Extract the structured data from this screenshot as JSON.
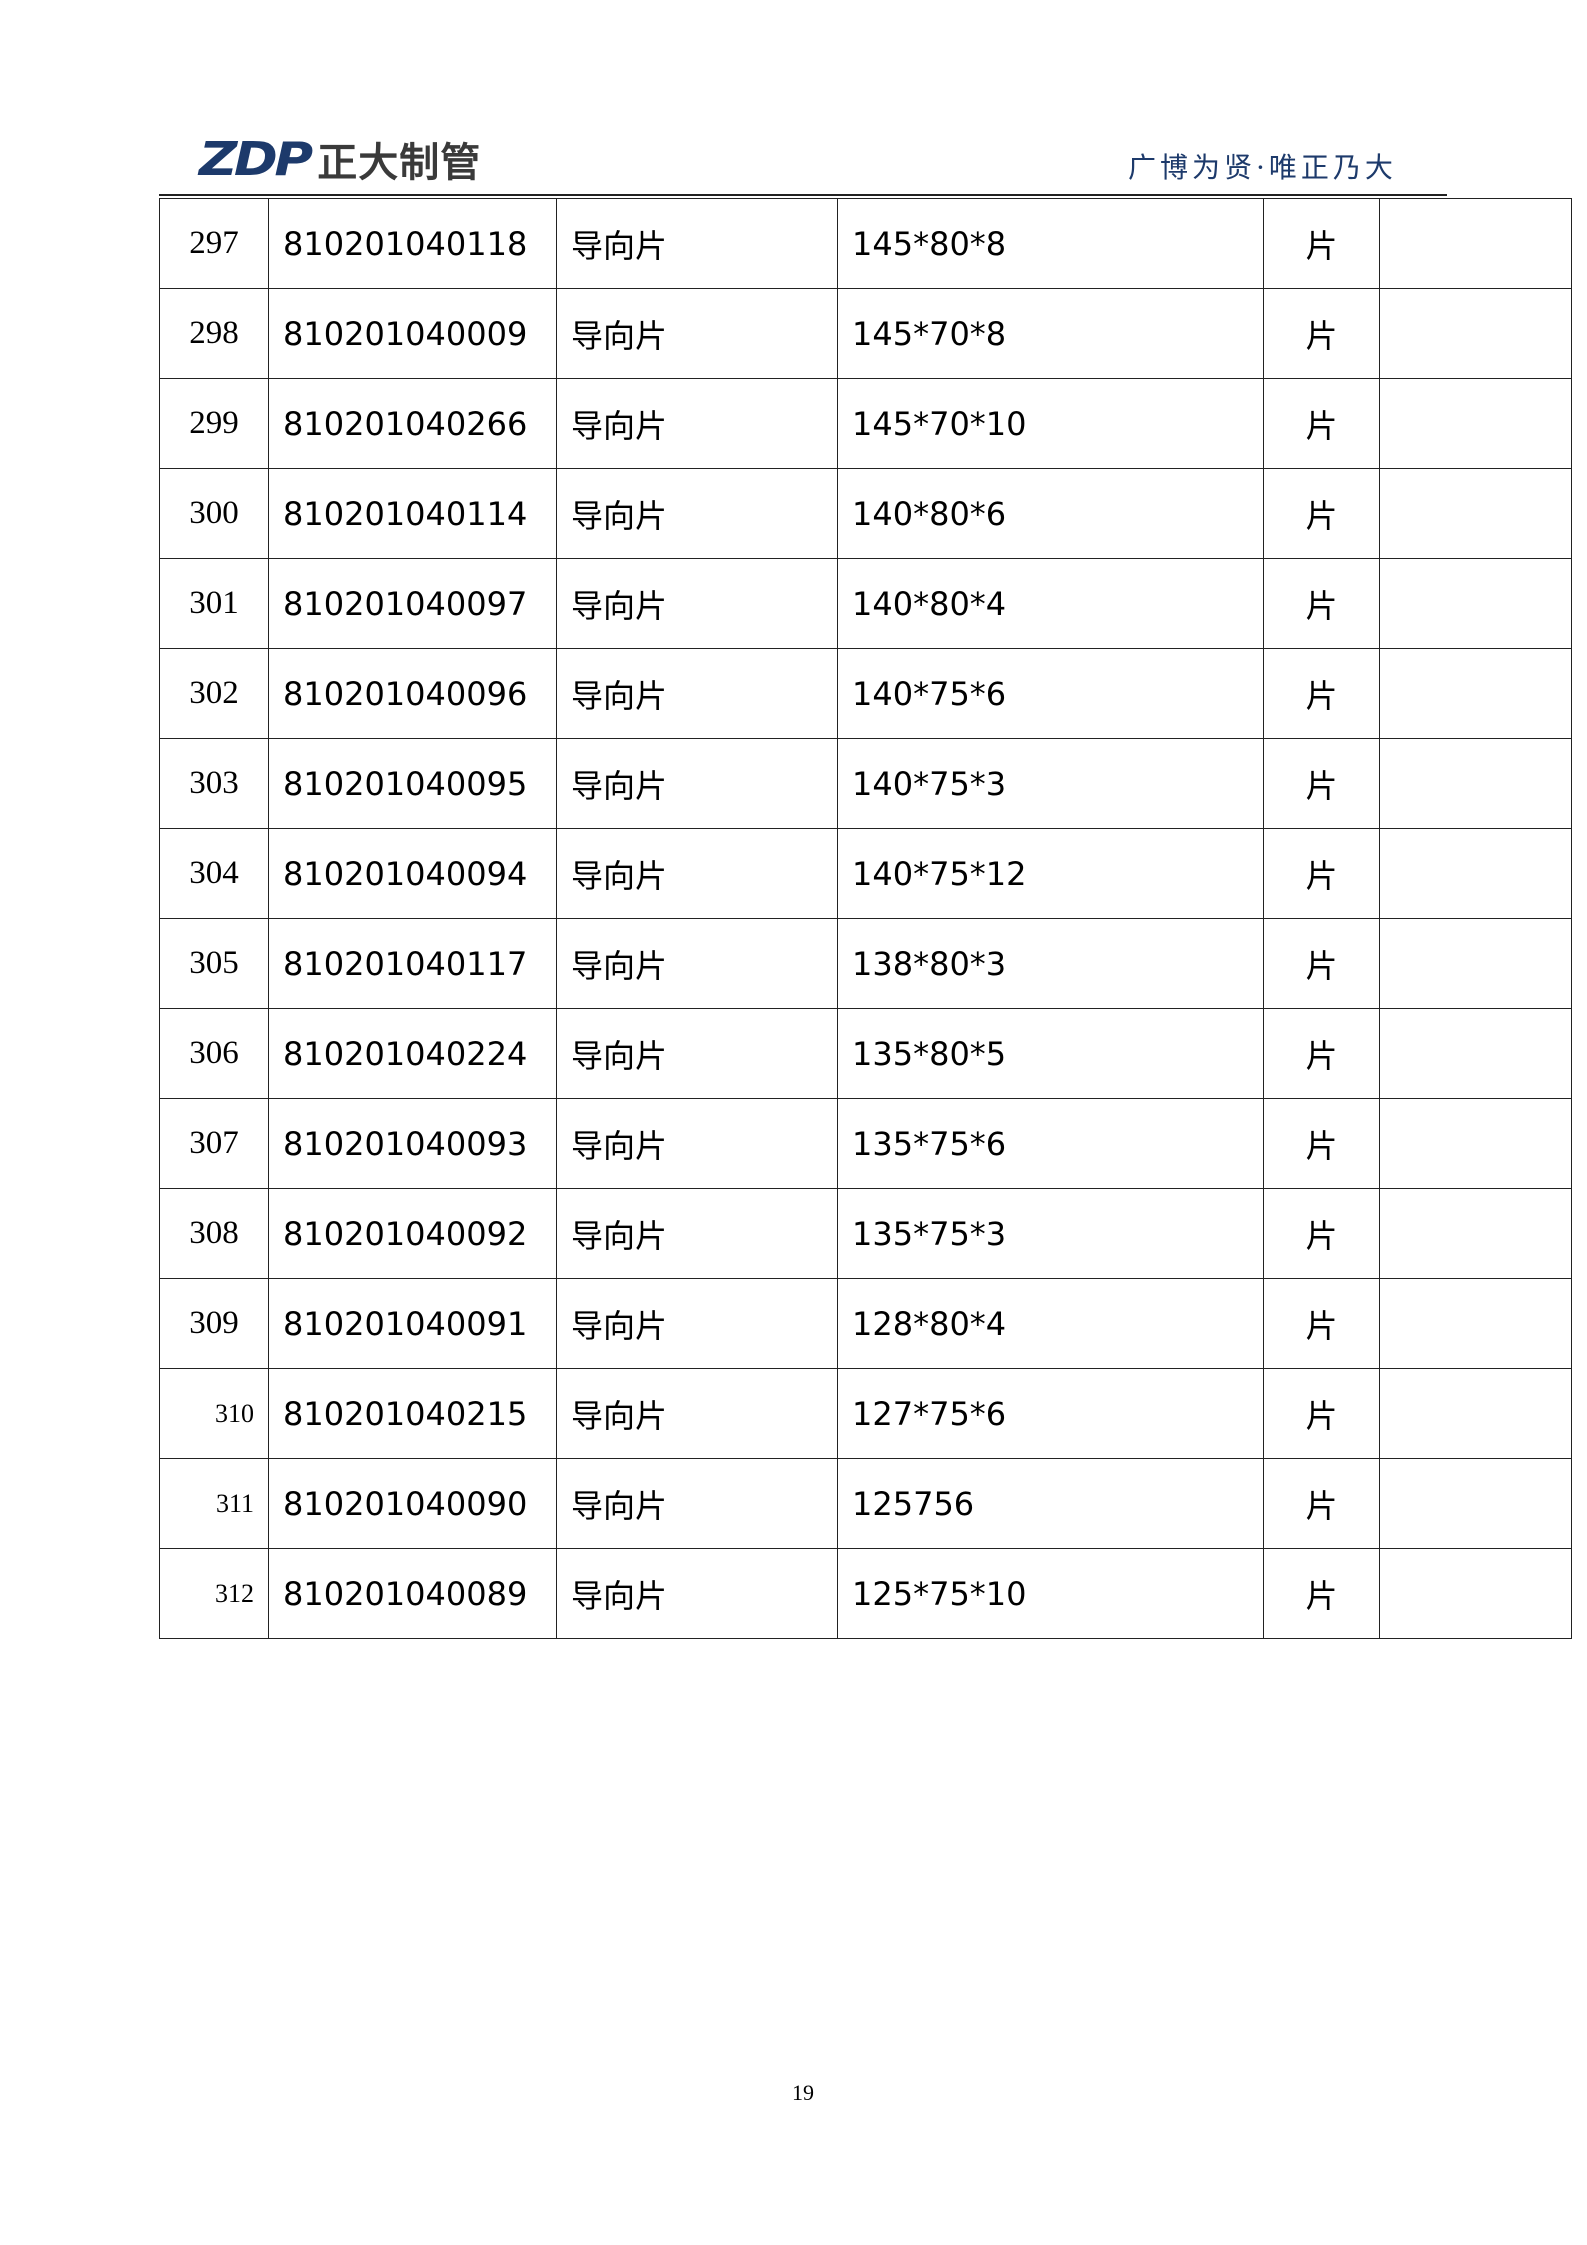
{
  "header": {
    "logo_mark": "ZDP",
    "logo_text": "正大制管",
    "slogan": "广博为贤·唯正乃大",
    "brand_color": "#1d3a6b"
  },
  "table": {
    "rows": [
      {
        "no": "297",
        "code": "810201040118",
        "name": "导向片",
        "spec": "145*80*8",
        "unit": "片",
        "extra": ""
      },
      {
        "no": "298",
        "code": "810201040009",
        "name": "导向片",
        "spec": "145*70*8",
        "unit": "片",
        "extra": ""
      },
      {
        "no": "299",
        "code": "810201040266",
        "name": "导向片",
        "spec": "145*70*10",
        "unit": "片",
        "extra": ""
      },
      {
        "no": "300",
        "code": "810201040114",
        "name": "导向片",
        "spec": "140*80*6",
        "unit": "片",
        "extra": ""
      },
      {
        "no": "301",
        "code": "810201040097",
        "name": "导向片",
        "spec": "140*80*4",
        "unit": "片",
        "extra": ""
      },
      {
        "no": "302",
        "code": "810201040096",
        "name": "导向片",
        "spec": "140*75*6",
        "unit": "片",
        "extra": ""
      },
      {
        "no": "303",
        "code": "810201040095",
        "name": "导向片",
        "spec": "140*75*3",
        "unit": "片",
        "extra": ""
      },
      {
        "no": "304",
        "code": "810201040094",
        "name": "导向片",
        "spec": "140*75*12",
        "unit": "片",
        "extra": ""
      },
      {
        "no": "305",
        "code": "810201040117",
        "name": "导向片",
        "spec": "138*80*3",
        "unit": "片",
        "extra": ""
      },
      {
        "no": "306",
        "code": "810201040224",
        "name": "导向片",
        "spec": "135*80*5",
        "unit": "片",
        "extra": ""
      },
      {
        "no": "307",
        "code": "810201040093",
        "name": "导向片",
        "spec": "135*75*6",
        "unit": "片",
        "extra": ""
      },
      {
        "no": "308",
        "code": "810201040092",
        "name": "导向片",
        "spec": "135*75*3",
        "unit": "片",
        "extra": ""
      },
      {
        "no": "309",
        "code": "810201040091",
        "name": "导向片",
        "spec": "128*80*4",
        "unit": "片",
        "extra": ""
      },
      {
        "no": "310",
        "code": "810201040215",
        "name": "导向片",
        "spec": "127*75*6",
        "unit": "片",
        "extra": ""
      },
      {
        "no": "311",
        "code": "810201040090",
        "name": "导向片",
        "spec": "125756",
        "unit": "片",
        "extra": ""
      },
      {
        "no": "312",
        "code": "810201040089",
        "name": "导向片",
        "spec": "125*75*10",
        "unit": "片",
        "extra": ""
      }
    ]
  },
  "footer": {
    "page_number": "19"
  }
}
